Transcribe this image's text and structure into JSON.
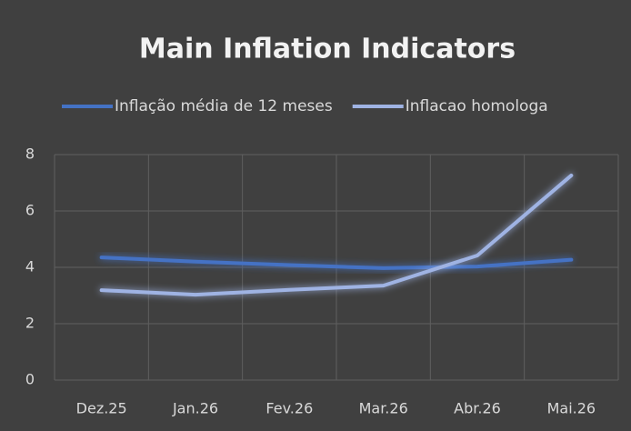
{
  "chart_data": {
    "type": "line",
    "title": "Main Inflation Indicators",
    "categories": [
      "Dez.25",
      "Jan.26",
      "Fev.26",
      "Mar.26",
      "Abr.26",
      "Mai.26"
    ],
    "series": [
      {
        "name": "Inflação média de 12 meses",
        "color": "#4472c4",
        "values": [
          4.35,
          4.2,
          4.08,
          3.97,
          4.03,
          4.27
        ]
      },
      {
        "name": "Inflacao homologa",
        "color": "#9fb3e3",
        "values": [
          3.19,
          3.03,
          3.2,
          3.35,
          4.42,
          7.26
        ]
      }
    ],
    "ylim": [
      0,
      8
    ],
    "yticks": [
      0,
      2,
      4,
      6,
      8
    ],
    "grid": true,
    "legend": "top"
  }
}
